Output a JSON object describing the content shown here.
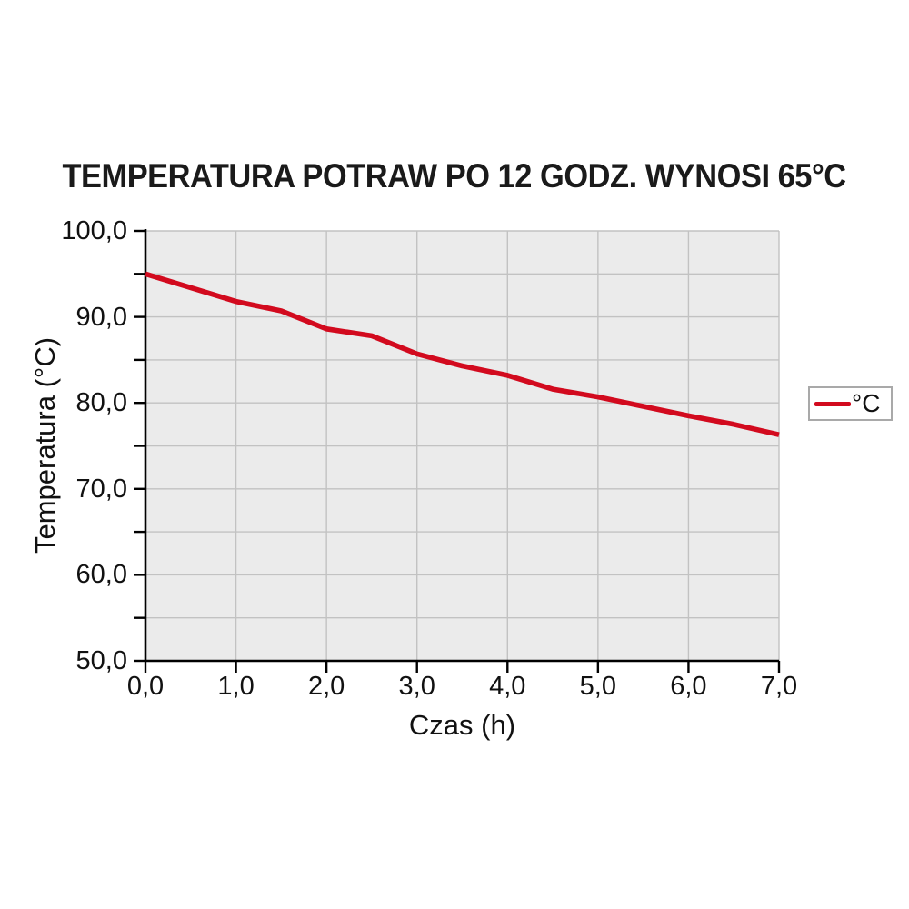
{
  "title": "TEMPERATURA POTRAW PO 12 GODZ. WYNOSI 65°C",
  "chart_data": {
    "type": "line",
    "title": "TEMPERATURA POTRAW PO 12 GODZ. WYNOSI 65°C",
    "xlabel": "Czas (h)",
    "ylabel": "Temperatura (°C)",
    "xlim": [
      0,
      7
    ],
    "ylim": [
      50,
      100
    ],
    "grid": {
      "on": true,
      "x_step": 1,
      "y_step": 5
    },
    "x_ticks": {
      "values": [
        0,
        1,
        2,
        3,
        4,
        5,
        6,
        7
      ],
      "labels": [
        "0,0",
        "1,0",
        "2,0",
        "3,0",
        "4,0",
        "5,0",
        "6,0",
        "7,0"
      ],
      "minor_step": 1
    },
    "y_ticks": {
      "values": [
        100,
        90,
        80,
        70,
        60,
        50
      ],
      "labels": [
        "100,0",
        "90,0",
        "80,0",
        "70,0",
        "60,0",
        "50,0"
      ],
      "minor_step": 5
    },
    "legend": {
      "label": "°C",
      "position": "right"
    },
    "series": [
      {
        "name": "°C",
        "color": "#d20a1e",
        "points": [
          [
            0.0,
            95.0
          ],
          [
            0.5,
            93.4
          ],
          [
            1.0,
            91.8
          ],
          [
            1.5,
            90.7
          ],
          [
            2.0,
            88.6
          ],
          [
            2.5,
            87.8
          ],
          [
            3.0,
            85.7
          ],
          [
            3.5,
            84.3
          ],
          [
            4.0,
            83.2
          ],
          [
            4.5,
            81.6
          ],
          [
            5.0,
            80.7
          ],
          [
            5.5,
            79.6
          ],
          [
            6.0,
            78.5
          ],
          [
            6.5,
            77.5
          ],
          [
            7.0,
            76.3
          ]
        ]
      }
    ],
    "colors": {
      "plot_background": "#ebebeb",
      "gridline": "#c2c2c2",
      "axis": "#000000",
      "series": "#d20a1e",
      "text": "#1a1a1a",
      "legend_border": "#a9a9a9"
    }
  }
}
